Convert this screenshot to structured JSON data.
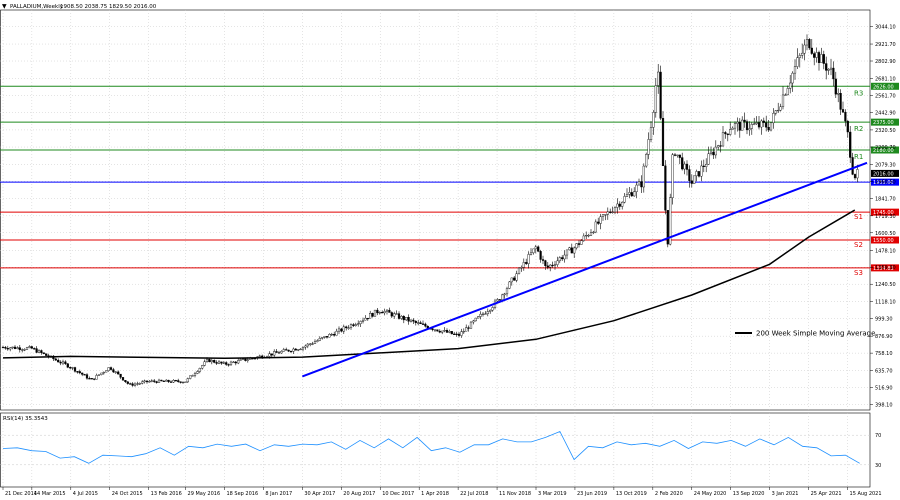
{
  "header": {
    "symbol": "PALLADIUM,Weekly",
    "ohlc": "1908.50 2038.75 1829.50 2016.00"
  },
  "chart_data": [
    {
      "type": "candlestick",
      "title": "PALLADIUM,Weekly",
      "ylim": [
        360,
        3160
      ],
      "grid": true,
      "y_ticks": [
        "3044.10",
        "2921.70",
        "2802.90",
        "2681.10",
        "2561.70",
        "2442.90",
        "2320.50",
        "2200.70",
        "2079.30",
        "1960.50",
        "1841.70",
        "1719.30",
        "1600.50",
        "1478.10",
        "1359.30",
        "1240.50",
        "1118.10",
        "999.30",
        "876.90",
        "758.10",
        "635.70",
        "516.90",
        "398.10"
      ],
      "x_ticks": [
        "21 Dec 2014",
        "14 Mar 2015",
        "4 Jul 2015",
        "24 Oct 2015",
        "13 Feb 2016",
        "29 May 2016",
        "18 Sep 2016",
        "8 Jan 2017",
        "30 Apr 2017",
        "20 Aug 2017",
        "10 Dec 2017",
        "1 Apr 2018",
        "22 Jul 2018",
        "11 Nov 2018",
        "3 Mar 2019",
        "23 Jun 2019",
        "13 Oct 2019",
        "2 Feb 2020",
        "24 May 2020",
        "13 Sep 2020",
        "3 Jan 2021",
        "25 Apr 2021",
        "15 Aug 2021"
      ],
      "levels": [
        {
          "name": "R3",
          "value": 2626.0,
          "label": "2626.00",
          "color": "#1f8a1f"
        },
        {
          "name": "R2",
          "value": 2375.0,
          "label": "2375.00",
          "color": "#1f8a1f"
        },
        {
          "name": "R1",
          "value": 2180.0,
          "label": "2180.00",
          "color": "#1f8a1f"
        },
        {
          "name": "",
          "value": 1955.0,
          "label": "1955.00",
          "color": "#0000ff"
        },
        {
          "name": "S1",
          "value": 1745.0,
          "label": "1745.00",
          "color": "#e00000"
        },
        {
          "name": "S2",
          "value": 1550.0,
          "label": "1550.00",
          "color": "#e00000"
        },
        {
          "name": "S3",
          "value": 1354.83,
          "label": "1354.83",
          "color": "#e00000"
        }
      ],
      "current_price": {
        "value": 2016.0,
        "label": "2016.00"
      },
      "trendline": {
        "from": {
          "x": "30 Apr 2017",
          "y": 595
        },
        "to": {
          "x": "10 Oct 2021",
          "y": 2090
        },
        "color": "#0000ff"
      },
      "moving_average": {
        "label": "200 Week Simple Moving Average",
        "color": "#000000",
        "points": [
          [
            "21 Dec 2014",
            725
          ],
          [
            "4 Jul 2015",
            735
          ],
          [
            "13 Feb 2016",
            728
          ],
          [
            "18 Sep 2016",
            722
          ],
          [
            "30 Apr 2017",
            730
          ],
          [
            "10 Dec 2017",
            760
          ],
          [
            "22 Jul 2018",
            790
          ],
          [
            "3 Mar 2019",
            855
          ],
          [
            "13 Oct 2019",
            985
          ],
          [
            "24 May 2020",
            1165
          ],
          [
            "3 Jan 2021",
            1380
          ],
          [
            "25 Apr 2021",
            1570
          ],
          [
            "15 Aug 2021",
            1730
          ],
          [
            "5 Sep 2021",
            1760
          ]
        ]
      },
      "price_path": [
        [
          "21 Dec 2014",
          800
        ],
        [
          "14 Mar 2015",
          790
        ],
        [
          "4 Jul 2015",
          660
        ],
        [
          "1 Sep 2015",
          570
        ],
        [
          "24 Oct 2015",
          660
        ],
        [
          "20 Dec 2015",
          535
        ],
        [
          "13 Feb 2016",
          560
        ],
        [
          "29 May 2016",
          560
        ],
        [
          "1 Aug 2016",
          710
        ],
        [
          "18 Sep 2016",
          680
        ],
        [
          "8 Jan 2017",
          740
        ],
        [
          "30 Apr 2017",
          800
        ],
        [
          "20 Aug 2017",
          920
        ],
        [
          "10 Dec 2017",
          1060
        ],
        [
          "1 Apr 2018",
          960
        ],
        [
          "22 Jul 2018",
          880
        ],
        [
          "11 Nov 2018",
          1120
        ],
        [
          "3 Mar 2019",
          1500
        ],
        [
          "1 Apr 2019",
          1350
        ],
        [
          "23 Jun 2019",
          1500
        ],
        [
          "13 Oct 2019",
          1780
        ],
        [
          "1 Jan 2020",
          1950
        ],
        [
          "2 Feb 2020",
          2450
        ],
        [
          "16 Feb 2020",
          2750
        ],
        [
          "15 Mar 2020",
          1500
        ],
        [
          "1 Apr 2020",
          2200
        ],
        [
          "24 May 2020",
          1950
        ],
        [
          "13 Sep 2020",
          2350
        ],
        [
          "3 Jan 2021",
          2350
        ],
        [
          "25 Mar 2021",
          2800
        ],
        [
          "25 Apr 2021",
          2950
        ],
        [
          "10 May 2021",
          2870
        ],
        [
          "1 Jul 2021",
          2720
        ],
        [
          "15 Aug 2021",
          2300
        ],
        [
          "1 Sep 2021",
          2000
        ],
        [
          "19 Sep 2021",
          2016
        ]
      ],
      "ma_legend_position": "right"
    },
    {
      "type": "line",
      "title": "RSI(14) 35.3543",
      "ylim": [
        0,
        100
      ],
      "y_ticks": [
        "70",
        "30"
      ],
      "series": [
        {
          "name": "RSI(14)",
          "color": "#1e90ff",
          "values": [
            55,
            50,
            52,
            45,
            42,
            38,
            35,
            40,
            45,
            38,
            48,
            50,
            46,
            52,
            56,
            55,
            58,
            55,
            52,
            54,
            58,
            55,
            60,
            58,
            54,
            60,
            56,
            62,
            56,
            64,
            52,
            50,
            50,
            54,
            60,
            62,
            64,
            58,
            70,
            72,
            40,
            52,
            56,
            58,
            60,
            56,
            58,
            60,
            55,
            58,
            62,
            60,
            58,
            62,
            60,
            64,
            58,
            50,
            45,
            40,
            35
          ]
        }
      ]
    }
  ],
  "legend": {
    "ma_label": "200 Week Simple Moving Average"
  }
}
